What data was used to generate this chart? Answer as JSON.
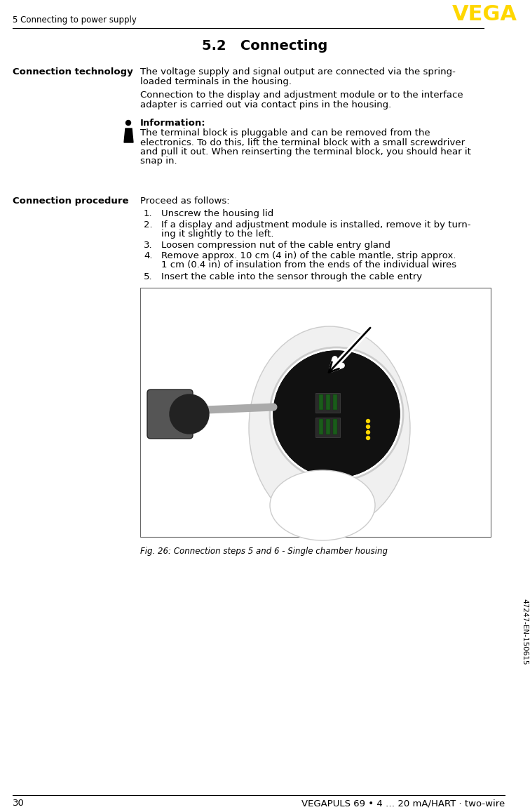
{
  "page_width": 7.56,
  "page_height": 11.57,
  "bg_color": "#ffffff",
  "header_text": "5 Connecting to power supply",
  "vega_logo_color": "#FFD700",
  "section_title": "5.2   Connecting",
  "left_col_label1": "Connection technology",
  "para1_line1": "The voltage supply and signal output are connected via the spring-",
  "para1_line2": "loaded terminals in the housing.",
  "para2_line1": "Connection to the display and adjustment module or to the interface",
  "para2_line2": "adapter is carried out via contact pins in the housing.",
  "info_label": "Information:",
  "info_text_lines": [
    "The terminal block is pluggable and can be removed from the",
    "electronics. To do this, lift the terminal block with a small screwdriver",
    "and pull it out. When reinserting the terminal block, you should hear it",
    "snap in."
  ],
  "left_col_label2": "Connection procedure",
  "proc_intro": "Proceed as follows:",
  "step_numbers": [
    "1.",
    "2.",
    "3.",
    "4.",
    "5."
  ],
  "step_line1": [
    "Unscrew the housing lid",
    "If a display and adjustment module is installed, remove it by turn-",
    "Loosen compression nut of the cable entry gland",
    "Remove approx. 10 cm (4 in) of the cable mantle, strip approx.",
    "Insert the cable into the sensor through the cable entry"
  ],
  "step_line2": [
    "",
    "ing it slightly to the left.",
    "",
    "1 cm (0.4 in) of insulation from the ends of the individual wires",
    ""
  ],
  "fig_caption": "Fig. 26: Connection steps 5 and 6 - Single chamber housing",
  "footer_page": "30",
  "footer_right": "VEGAPULS 69 • 4 … 20 mA/HART · two-wire",
  "sidebar_text": "47247-EN-150615"
}
